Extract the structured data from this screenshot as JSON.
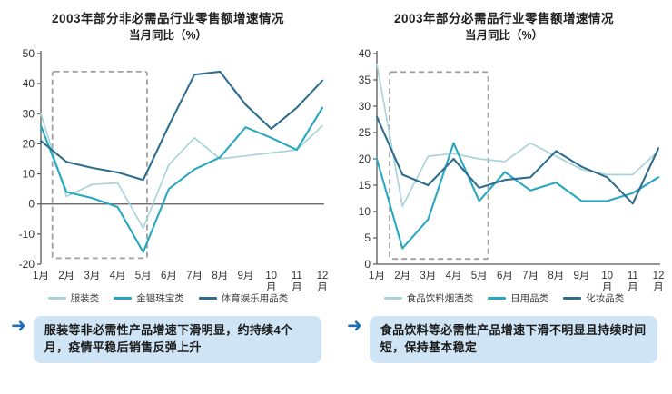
{
  "chart_data": [
    {
      "type": "line",
      "title": "2003年部分非必需品行业零售额增速情况",
      "subtitle": "当月同比（%）",
      "xlabel": "",
      "ylabel": "",
      "ylim": [
        -20,
        50
      ],
      "ystep": 10,
      "grid": false,
      "legend_position": "bottom",
      "categories": [
        "1月",
        "2月",
        "3月",
        "4月",
        "5月",
        "6月",
        "7月",
        "8月",
        "9月",
        "10月",
        "11月",
        "12月"
      ],
      "highlight_box": {
        "month_start": 1.45,
        "month_end": 5.15,
        "value_bottom": -18,
        "value_top": 44
      },
      "series": [
        {
          "name": "服装类",
          "color": "#a9d5d8",
          "stroke_width": 1.7,
          "values": [
            30,
            2.5,
            6.5,
            7,
            -8,
            13,
            22,
            15,
            16,
            17,
            18,
            26
          ]
        },
        {
          "name": "金银珠宝类",
          "color": "#28a8c0",
          "stroke_width": 2.1,
          "values": [
            26,
            4,
            2,
            -1,
            -16,
            5,
            11.5,
            15.5,
            25.5,
            22,
            18,
            32
          ]
        },
        {
          "name": "体育娱乐用品类",
          "color": "#2f6d8f",
          "stroke_width": 2.1,
          "values": [
            21,
            14,
            12,
            10.5,
            8,
            26,
            43,
            44,
            33,
            25,
            32,
            41
          ]
        }
      ]
    },
    {
      "type": "line",
      "title": "2003年部分必需品行业零售额增速情况",
      "subtitle": "当月同比（%）",
      "xlabel": "",
      "ylabel": "",
      "ylim": [
        0,
        40
      ],
      "ystep": 5,
      "grid": false,
      "legend_position": "bottom",
      "categories": [
        "1月",
        "2月",
        "3月",
        "4月",
        "5月",
        "6月",
        "7月",
        "8月",
        "9月",
        "10月",
        "11月",
        "12月"
      ],
      "highlight_box": {
        "month_start": 1.5,
        "month_end": 5.35,
        "value_bottom": 1,
        "value_top": 36.5
      },
      "series": [
        {
          "name": "食品饮料烟酒类",
          "color": "#a9d5d8",
          "stroke_width": 1.7,
          "values": [
            38,
            11,
            20.5,
            21,
            20,
            19.5,
            23,
            20.5,
            18,
            17,
            17,
            21.5
          ]
        },
        {
          "name": "日用品类",
          "color": "#28a8c0",
          "stroke_width": 2.1,
          "values": [
            20,
            3,
            8.5,
            23,
            12,
            17.5,
            14,
            15.5,
            12,
            12,
            13.5,
            16.5
          ]
        },
        {
          "name": "化妆品类",
          "color": "#2f6d8f",
          "stroke_width": 2.1,
          "values": [
            28,
            17,
            15,
            20,
            14.5,
            16,
            16.5,
            21.5,
            18.5,
            16.5,
            11.5,
            22
          ]
        }
      ]
    }
  ],
  "notes": [
    {
      "arrow": "➜",
      "text": "服装等非必需性产品增速下滑明显，约持续4个月，疫情平稳后销售反弹上升"
    },
    {
      "arrow": "➜",
      "text": "食品饮料等必需性产品增速下滑不明显且持续时间短，保持基本稳定"
    }
  ],
  "style": {
    "axis_color": "#595959",
    "tick_label_color": "#333333",
    "dashed_box_color": "#a0a0a0",
    "note_bg": "#cfe5f5",
    "arrow_color": "#1e6cb5"
  }
}
